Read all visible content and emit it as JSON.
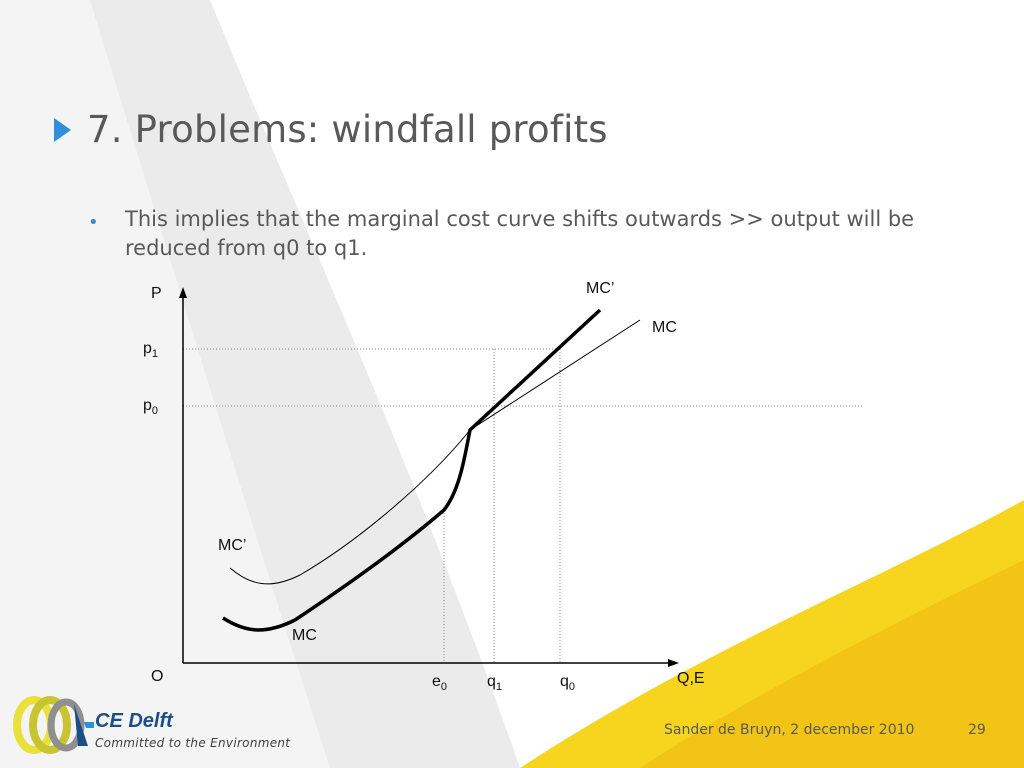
{
  "slide": {
    "title": "7. Problems: windfall profits",
    "bullet": "This implies that the marginal cost curve shifts outwards >> output will be reduced from q0 to q1."
  },
  "diagram": {
    "y_axis_label": "P",
    "x_axis_label": "Q,E",
    "origin_label": "O",
    "price_labels": {
      "p1": "p",
      "p1_sub": "1",
      "p0": "p",
      "p0_sub": "0"
    },
    "quantity_labels": {
      "e0": "e",
      "e0_sub": "0",
      "q1": "q",
      "q1_sub": "1",
      "q0": "q",
      "q0_sub": "0"
    },
    "curve_labels": {
      "mc_prime_top": "MC’",
      "mc_top": "MC",
      "mc_prime_left": "MC’",
      "mc_bottom": "MC"
    }
  },
  "footer": {
    "author_date": "Sander de Bruyn, 2 december 2010",
    "page_number": "29"
  },
  "logo": {
    "name": "CE Delft",
    "tagline": "Committed to the Environment"
  },
  "colors": {
    "accent_blue": "#2f8fd8",
    "accent_yellow": "#f7d51e",
    "text_gray": "#595959",
    "logo_navy": "#1b4e86"
  }
}
